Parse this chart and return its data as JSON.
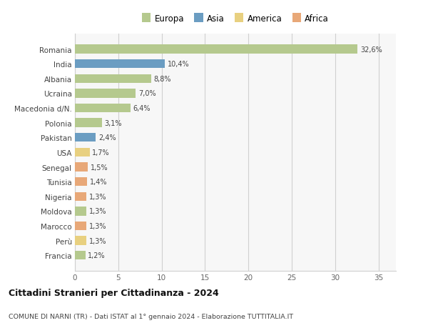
{
  "countries": [
    "Francia",
    "Perù",
    "Marocco",
    "Moldova",
    "Nigeria",
    "Tunisia",
    "Senegal",
    "USA",
    "Pakistan",
    "Polonia",
    "Macedonia d/N.",
    "Ucraina",
    "Albania",
    "India",
    "Romania"
  ],
  "values": [
    1.2,
    1.3,
    1.3,
    1.3,
    1.3,
    1.4,
    1.5,
    1.7,
    2.4,
    3.1,
    6.4,
    7.0,
    8.8,
    10.4,
    32.6
  ],
  "labels": [
    "1,2%",
    "1,3%",
    "1,3%",
    "1,3%",
    "1,3%",
    "1,4%",
    "1,5%",
    "1,7%",
    "2,4%",
    "3,1%",
    "6,4%",
    "7,0%",
    "8,8%",
    "10,4%",
    "32,6%"
  ],
  "continents": [
    "Europa",
    "America",
    "Africa",
    "Europa",
    "Africa",
    "Africa",
    "Africa",
    "America",
    "Asia",
    "Europa",
    "Europa",
    "Europa",
    "Europa",
    "Asia",
    "Europa"
  ],
  "continent_colors": {
    "Europa": "#b5c98e",
    "Asia": "#6b9dc2",
    "America": "#e8d080",
    "Africa": "#e8a878"
  },
  "legend_order": [
    "Europa",
    "Asia",
    "America",
    "Africa"
  ],
  "title": "Cittadini Stranieri per Cittadinanza - 2024",
  "subtitle": "COMUNE DI NARNI (TR) - Dati ISTAT al 1° gennaio 2024 - Elaborazione TUTTITALIA.IT",
  "xlim": [
    0,
    37
  ],
  "xticks": [
    0,
    5,
    10,
    15,
    20,
    25,
    30,
    35
  ],
  "bg_color": "#ffffff",
  "plot_bg_color": "#f7f7f7",
  "grid_color": "#d0d0d0",
  "bar_height": 0.6
}
